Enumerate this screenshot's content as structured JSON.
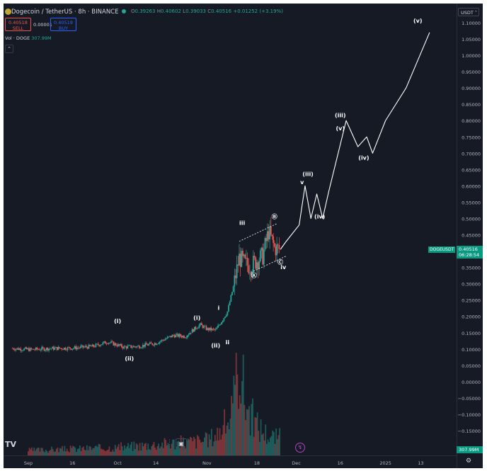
{
  "header": {
    "title": "Dogecoin / TetherUS · 8h · BINANCE",
    "ohlc": [
      {
        "label": "O",
        "value": "0.39263"
      },
      {
        "label": "H",
        "value": "0.40602"
      },
      {
        "label": "L",
        "value": "0.39033"
      },
      {
        "label": "C",
        "value": "0.40516"
      }
    ],
    "change": "+0.01252 (+3.19%)"
  },
  "trade": {
    "sell_price": "0.40518",
    "sell_label": "SELL",
    "spread": "0.00001",
    "buy_price": "0.40519",
    "buy_label": "BUY"
  },
  "volume_legend": {
    "label": "Vol · DOGE",
    "value": "307.99M"
  },
  "price_axis": {
    "currency": "USDT",
    "ticks": [
      "1.10000",
      "1.05000",
      "1.00000",
      "0.95000",
      "0.90000",
      "0.85000",
      "0.80000",
      "0.75000",
      "0.70000",
      "0.65000",
      "0.60000",
      "0.55000",
      "0.50000",
      "0.45000",
      "0.40000",
      "0.35000",
      "0.30000",
      "0.25000",
      "0.20000",
      "0.15000",
      "0.10000",
      "0.05000",
      "0.00000",
      "−0.05000",
      "−0.10000",
      "−0.15000"
    ],
    "symbol_tag": "DOGEUSDT",
    "last_price": "0.40516",
    "countdown": "06:28:54",
    "volume_tag": "307.99M"
  },
  "time_axis": {
    "ticks": [
      "Sep",
      "16",
      "Oct",
      "14",
      "Nov",
      "18",
      "Dec",
      "16",
      "2025",
      "13"
    ]
  },
  "icons": {
    "logo": "tradingview-logo",
    "collapse": "chevron-up-icon",
    "image": "image-icon",
    "grip": "grip-icon",
    "flash": "flash-icon",
    "settings": "gear-icon",
    "coin": "dogecoin-icon"
  },
  "colors": {
    "background": "#161a25",
    "up": "#26a69a",
    "down": "#ef5350",
    "text": "#d1d4dc",
    "accent": "#089981"
  },
  "chart_data": {
    "type": "line",
    "title": "Dogecoin / TetherUS · 8h · BINANCE",
    "xlabel": "",
    "ylabel": "",
    "ylim": [
      -0.165,
      1.115
    ],
    "x_ticks": [
      "Sep",
      "16",
      "Oct",
      "14",
      "Nov",
      "18",
      "Dec",
      "16",
      "2025",
      "13"
    ],
    "grid": false,
    "series": [
      {
        "type": "candlestick",
        "x": [
          "Aug 26",
          "Sep 2",
          "Sep 9",
          "Sep 16",
          "Sep 23",
          "Sep 28",
          "Oct 3",
          "Oct 8",
          "Oct 14",
          "Oct 20",
          "Oct 24",
          "Oct 29",
          "Nov 1",
          "Nov 4",
          "Nov 6",
          "Nov 8",
          "Nov 10",
          "Nov 12",
          "Nov 14",
          "Nov 16",
          "Nov 18",
          "Nov 20",
          "Nov 22",
          "Nov 24",
          "Nov 26"
        ],
        "close": [
          0.102,
          0.098,
          0.102,
          0.103,
          0.108,
          0.122,
          0.106,
          0.108,
          0.118,
          0.142,
          0.139,
          0.175,
          0.161,
          0.158,
          0.185,
          0.215,
          0.29,
          0.38,
          0.36,
          0.355,
          0.372,
          0.385,
          0.46,
          0.41,
          0.405
        ]
      },
      {
        "name": "projection",
        "x": [
          "Nov 28",
          "Dec 2",
          "Dec 4",
          "Dec 6",
          "Dec 8",
          "Dec 10",
          "Dec 12",
          "Dec 18",
          "Dec 22",
          "Dec 25",
          "Dec 27",
          "Jan 1",
          "Jan 8",
          "Jan 16"
        ],
        "y": [
          0.43,
          0.48,
          0.6,
          0.5,
          0.575,
          0.5,
          0.58,
          0.8,
          0.72,
          0.75,
          0.7,
          0.8,
          0.9,
          1.07
        ]
      }
    ],
    "volume": {
      "series_name": "Vol · DOGE",
      "last": "307.99M",
      "x": [
        "Sep",
        "Oct",
        "Nov 1",
        "Nov 6",
        "Nov 10",
        "Nov 12",
        "Nov 14",
        "Nov 16",
        "Nov 18",
        "Nov 22",
        "Nov 24"
      ],
      "values": [
        5,
        8,
        15,
        25,
        45,
        100,
        55,
        40,
        30,
        20,
        18
      ]
    },
    "annotations": [
      {
        "text": "(i)",
        "x": "Oct 1",
        "y": 0.18
      },
      {
        "text": "(ii)",
        "x": "Oct 5",
        "y": 0.065
      },
      {
        "text": "(i)",
        "x": "Oct 28",
        "y": 0.19
      },
      {
        "text": "(ii)",
        "x": "Nov 4",
        "y": 0.105
      },
      {
        "text": "i",
        "x": "Nov 5",
        "y": 0.22
      },
      {
        "text": "ii",
        "x": "Nov 8",
        "y": 0.115
      },
      {
        "text": "iii",
        "x": "Nov 13",
        "y": 0.48
      },
      {
        "text": "Ⓑ",
        "x": "Nov 24",
        "y": 0.5
      },
      {
        "text": "Ⓐ",
        "x": "Nov 17",
        "y": 0.32
      },
      {
        "text": "Ⓒ",
        "x": "Nov 26",
        "y": 0.36
      },
      {
        "text": "iv",
        "x": "Nov 27",
        "y": 0.345
      },
      {
        "text": "v",
        "x": "Dec 3",
        "y": 0.605
      },
      {
        "text": "(iii)",
        "x": "Dec 5",
        "y": 0.63
      },
      {
        "text": "(iv)",
        "x": "Dec 9",
        "y": 0.5
      },
      {
        "text": "(iii)",
        "x": "Dec 16",
        "y": 0.81
      },
      {
        "text": "(v)",
        "x": "Dec 16",
        "y": 0.77
      },
      {
        "text": "(iv)",
        "x": "Dec 24",
        "y": 0.68
      },
      {
        "text": "(v)",
        "x": "Jan 12",
        "y": 1.1
      }
    ]
  }
}
